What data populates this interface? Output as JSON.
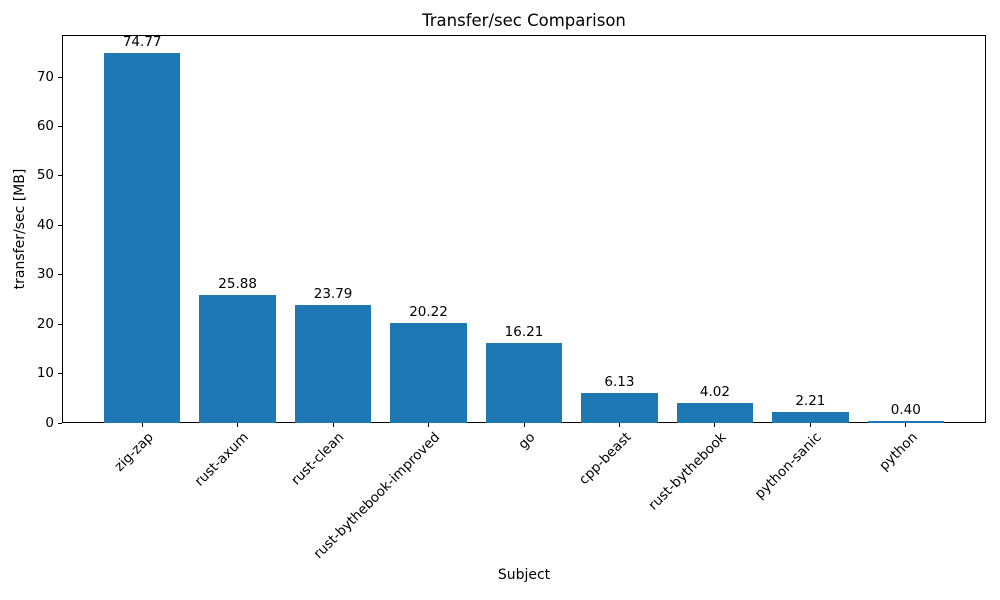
{
  "chart_data": {
    "type": "bar",
    "title": "Transfer/sec Comparison",
    "xlabel": "Subject",
    "ylabel": "transfer/sec [MB]",
    "categories": [
      "zig-zap",
      "rust-axum",
      "rust-clean",
      "rust-bythebook-improved",
      "go",
      "cpp-beast",
      "rust-bythebook",
      "python-sanic",
      "python"
    ],
    "values": [
      74.77,
      25.88,
      23.79,
      20.22,
      16.21,
      6.13,
      4.02,
      2.21,
      0.4
    ],
    "bar_value_labels": [
      "74.77",
      "25.88",
      "23.79",
      "20.22",
      "16.21",
      "6.13",
      "4.02",
      "2.21",
      "0.40"
    ],
    "yticks": [
      0,
      10,
      20,
      30,
      40,
      50,
      60,
      70
    ],
    "ytick_labels": [
      "0",
      "10",
      "20",
      "30",
      "40",
      "50",
      "60",
      "70"
    ],
    "ylim": [
      0,
      78.5
    ],
    "bar_color": "#1f77b4",
    "spine_color": "#000000",
    "text_color": "#000000",
    "x_tick_rotation_deg": 45,
    "grid": false,
    "legend_position": "none"
  }
}
